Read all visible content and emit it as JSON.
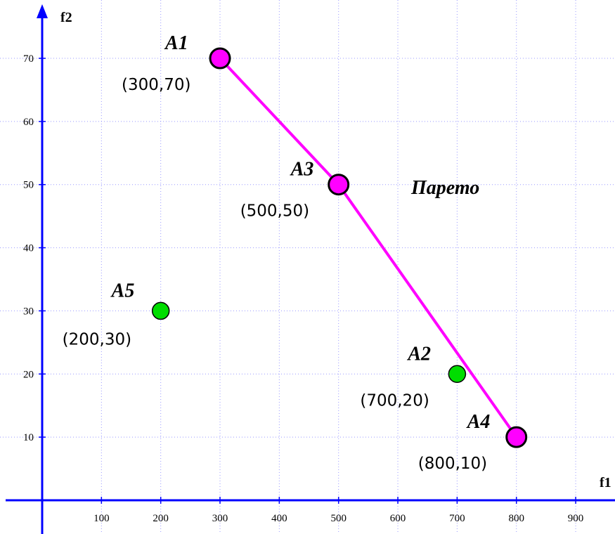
{
  "chart_data": {
    "type": "scatter",
    "xlabel": "f1",
    "ylabel": "f2",
    "xlim": [
      -50,
      970
    ],
    "ylim": [
      -13,
      85
    ],
    "x_ticks": [
      100,
      200,
      300,
      400,
      500,
      600,
      700,
      800,
      900
    ],
    "y_ticks": [
      10,
      20,
      30,
      40,
      50,
      60,
      70
    ],
    "grid": true,
    "points": [
      {
        "label": "A1",
        "coord_text": "(300,70)",
        "x": 300,
        "y": 70,
        "color": "#ff00ff",
        "pareto": true
      },
      {
        "label": "A2",
        "coord_text": "(700,20)",
        "x": 700,
        "y": 20,
        "color": "#00dd00",
        "pareto": false
      },
      {
        "label": "A3",
        "coord_text": "(500,50)",
        "x": 500,
        "y": 50,
        "color": "#ff00ff",
        "pareto": true
      },
      {
        "label": "A4",
        "coord_text": "(800,10)",
        "x": 800,
        "y": 10,
        "color": "#ff00ff",
        "pareto": true
      },
      {
        "label": "A5",
        "coord_text": "(200,30)",
        "x": 200,
        "y": 30,
        "color": "#00dd00",
        "pareto": false
      }
    ],
    "pareto_front": {
      "label": "Парето",
      "color": "#ff00ff",
      "path": [
        "A1",
        "A3",
        "A4"
      ]
    }
  }
}
